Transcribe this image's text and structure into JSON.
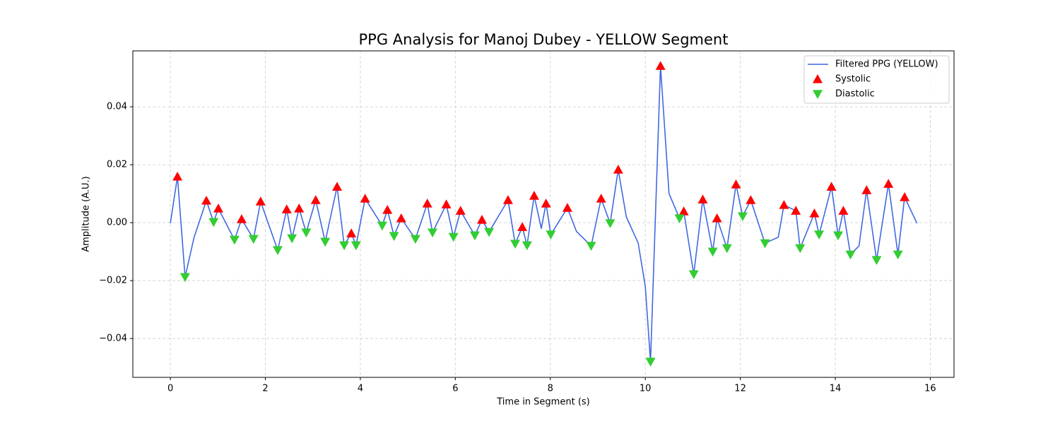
{
  "chart_data": {
    "type": "line",
    "title": "PPG Analysis for Manoj Dubey - YELLOW Segment",
    "xlabel": "Time in Segment (s)",
    "ylabel": "Amplitude (A.U.)",
    "xlim": [
      -0.79,
      16.5
    ],
    "ylim": [
      -0.0534,
      0.0593
    ],
    "xticks": [
      0,
      2,
      4,
      6,
      8,
      10,
      12,
      14,
      16
    ],
    "yticks": [
      {
        "value": -0.04,
        "label": "−0.04"
      },
      {
        "value": -0.02,
        "label": "−0.02"
      },
      {
        "value": 0,
        "label": "0.00"
      },
      {
        "value": 0.02,
        "label": "0.02"
      },
      {
        "value": 0.04,
        "label": "0.04"
      }
    ],
    "grid": true,
    "legend": "upper right",
    "series": [
      {
        "name": "Filtered PPG (YELLOW)",
        "type": "line",
        "color": "#4169e1",
        "x": [
          0,
          0.149,
          0.31,
          0.5,
          0.758,
          0.91,
          1.01,
          1.35,
          1.5,
          1.75,
          1.9,
          2.26,
          2.45,
          2.56,
          2.71,
          2.86,
          3.06,
          3.26,
          3.51,
          3.66,
          3.81,
          3.91,
          4.1,
          4.46,
          4.57,
          4.71,
          4.86,
          5.16,
          5.41,
          5.52,
          5.81,
          5.96,
          6.11,
          6.41,
          6.56,
          6.71,
          7.11,
          7.26,
          7.41,
          7.51,
          7.66,
          7.81,
          7.91,
          8.01,
          8.36,
          8.55,
          8.86,
          9.07,
          9.26,
          9.43,
          9.6,
          9.85,
          10.0,
          10.11,
          10.32,
          10.5,
          10.72,
          10.81,
          11.02,
          11.21,
          11.42,
          11.51,
          11.72,
          11.91,
          12.05,
          12.22,
          12.52,
          12.8,
          12.92,
          13.17,
          13.26,
          13.56,
          13.66,
          13.92,
          14.06,
          14.17,
          14.32,
          14.5,
          14.66,
          14.87,
          15.12,
          15.32,
          15.46,
          15.72
        ],
        "values": [
          -0.0002,
          0.0159,
          -0.0188,
          -0.005,
          0.0076,
          0.0002,
          0.0049,
          -0.0059,
          0.0012,
          -0.0056,
          0.0073,
          -0.0095,
          0.0046,
          -0.0054,
          0.0049,
          -0.0034,
          0.0078,
          -0.0066,
          0.0124,
          -0.0078,
          -0.0037,
          -0.0078,
          0.0083,
          -0.001,
          0.0044,
          -0.0046,
          0.0015,
          -0.0056,
          0.0066,
          -0.0034,
          0.0063,
          -0.0049,
          0.0041,
          -0.0044,
          0.001,
          -0.0032,
          0.0078,
          -0.0073,
          -0.0015,
          -0.0078,
          0.0093,
          -0.002,
          0.0066,
          -0.0041,
          0.0051,
          -0.003,
          -0.008,
          0.0083,
          -0.0002,
          0.0183,
          0.002,
          -0.007,
          -0.022,
          -0.048,
          0.0541,
          0.01,
          0.0015,
          0.0039,
          -0.0178,
          0.008,
          -0.01,
          0.0015,
          -0.0088,
          0.0132,
          0.0022,
          0.0078,
          -0.0071,
          -0.005,
          0.0061,
          0.0041,
          -0.0088,
          0.0032,
          -0.0041,
          0.0124,
          -0.0044,
          0.0041,
          -0.011,
          -0.008,
          0.0112,
          -0.0129,
          0.0134,
          -0.011,
          0.0088,
          -0.0002
        ]
      },
      {
        "name": "Systolic",
        "type": "scatter",
        "marker": "triangle-up",
        "color": "#ff0000",
        "x": [
          0.149,
          0.758,
          1.01,
          1.5,
          1.9,
          2.45,
          2.71,
          3.06,
          3.51,
          3.81,
          4.1,
          4.57,
          4.86,
          5.41,
          5.81,
          6.11,
          6.56,
          7.11,
          7.41,
          7.66,
          7.91,
          8.36,
          9.07,
          9.43,
          10.32,
          10.81,
          11.21,
          11.51,
          11.91,
          12.22,
          12.92,
          13.17,
          13.56,
          13.92,
          14.17,
          14.66,
          15.12,
          15.46
        ],
        "values": [
          0.0159,
          0.0076,
          0.0049,
          0.0012,
          0.0073,
          0.0046,
          0.0049,
          0.0078,
          0.0124,
          -0.0037,
          0.0083,
          0.0044,
          0.0015,
          0.0066,
          0.0063,
          0.0041,
          0.001,
          0.0078,
          -0.0015,
          0.0093,
          0.0066,
          0.0051,
          0.0083,
          0.0183,
          0.0541,
          0.0039,
          0.008,
          0.0015,
          0.0132,
          0.0078,
          0.0061,
          0.0041,
          0.0032,
          0.0124,
          0.0041,
          0.0112,
          0.0134,
          0.0088
        ]
      },
      {
        "name": "Diastolic",
        "type": "scatter",
        "marker": "triangle-down",
        "color": "#32cd32",
        "x": [
          0.31,
          0.91,
          1.35,
          1.75,
          2.26,
          2.56,
          2.86,
          3.26,
          3.66,
          3.91,
          4.46,
          4.71,
          5.16,
          5.52,
          5.96,
          6.41,
          6.71,
          7.26,
          7.51,
          8.01,
          8.86,
          9.26,
          10.11,
          10.72,
          11.02,
          11.42,
          11.72,
          12.05,
          12.52,
          13.26,
          13.66,
          14.06,
          14.32,
          14.87,
          15.32
        ],
        "values": [
          -0.0188,
          0.0002,
          -0.0059,
          -0.0056,
          -0.0095,
          -0.0054,
          -0.0034,
          -0.0066,
          -0.0078,
          -0.0078,
          -0.001,
          -0.0046,
          -0.0056,
          -0.0034,
          -0.0049,
          -0.0044,
          -0.0032,
          -0.0073,
          -0.0078,
          -0.0041,
          -0.008,
          -0.0002,
          -0.048,
          0.0015,
          -0.0178,
          -0.01,
          -0.0088,
          0.0022,
          -0.0071,
          -0.0088,
          -0.0041,
          -0.0044,
          -0.011,
          -0.0129,
          -0.011
        ]
      }
    ]
  }
}
